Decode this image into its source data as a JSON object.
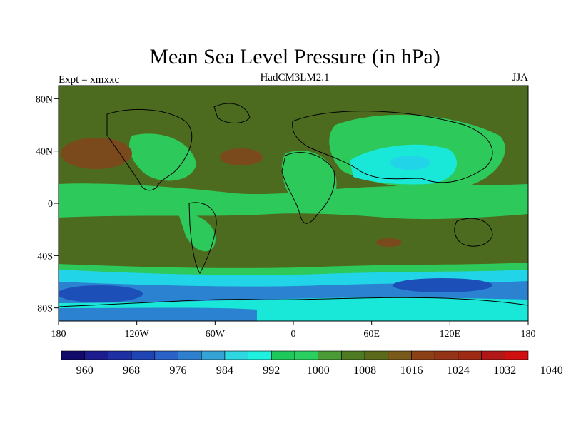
{
  "title": "Mean Sea Level Pressure (in hPa)",
  "left_label": "Expt = xmxxc",
  "center_label": "HadCM3LM2.1",
  "right_label": "JJA",
  "lat_ticks": [
    {
      "label": "80N",
      "value": 80
    },
    {
      "label": "40N",
      "value": 40
    },
    {
      "label": "0",
      "value": 0
    },
    {
      "label": "40S",
      "value": -40
    },
    {
      "label": "80S",
      "value": -80
    }
  ],
  "lon_ticks": [
    {
      "label": "180",
      "value": -180
    },
    {
      "label": "120W",
      "value": -120
    },
    {
      "label": "60W",
      "value": -60
    },
    {
      "label": "0",
      "value": 0
    },
    {
      "label": "60E",
      "value": 60
    },
    {
      "label": "120E",
      "value": 120
    },
    {
      "label": "180",
      "value": 180
    }
  ],
  "colorbar": {
    "labels": [
      "960",
      "968",
      "976",
      "984",
      "992",
      "1000",
      "1008",
      "1016",
      "1024",
      "1032",
      "1040"
    ],
    "colors": [
      "#120a6b",
      "#1c1c8e",
      "#1e2fa3",
      "#1f45b5",
      "#2a62c8",
      "#2f7fcf",
      "#35a3d6",
      "#2fd8e0",
      "#20f0e0",
      "#1fc85a",
      "#29d060",
      "#4a9a35",
      "#4d7a22",
      "#5a6a1a",
      "#7a5a1a",
      "#8c4016",
      "#943416",
      "#9f2a14",
      "#b01818",
      "#d01010"
    ]
  },
  "map_colors": {
    "background": "#4d6b1f",
    "green": "#2dc95a",
    "brown": "#7b4a1c",
    "cyan_light": "#19e8d8",
    "cyan": "#21d4e8",
    "blue_mid": "#2a82d0",
    "blue_dark": "#1d4fb8",
    "land_line": "#000000"
  }
}
